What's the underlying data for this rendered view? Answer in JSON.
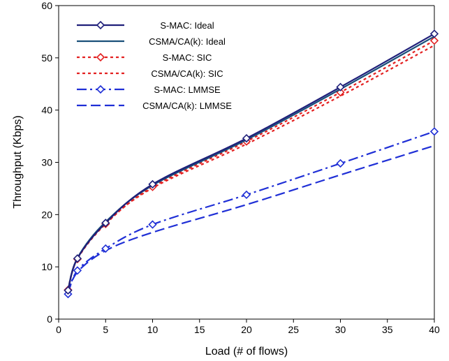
{
  "chart_data": {
    "type": "line",
    "title": "",
    "xlabel": "Load (# of flows)",
    "ylabel": "Throughput (Kbps)",
    "xlim": [
      0,
      40
    ],
    "ylim": [
      0,
      60
    ],
    "xticks": [
      0,
      5,
      10,
      15,
      20,
      25,
      30,
      35,
      40
    ],
    "yticks": [
      0,
      10,
      20,
      30,
      40,
      50,
      60
    ],
    "grid": false,
    "legend_position": "top-left",
    "series": [
      {
        "name": "S-MAC: Ideal",
        "color": "#1f1f7a",
        "style": "solid",
        "marker": "diamond",
        "x": [
          1,
          2,
          5,
          10,
          20,
          30,
          40
        ],
        "y": [
          5.5,
          11.6,
          18.4,
          25.8,
          34.6,
          44.4,
          54.6
        ]
      },
      {
        "name": "CSMA/CA(k): Ideal",
        "color": "#1a4f7a",
        "style": "solid",
        "marker": "none",
        "x": [
          1,
          2,
          5,
          10,
          20,
          30,
          40
        ],
        "y": [
          5.7,
          11.7,
          18.6,
          25.6,
          34.3,
          44.0,
          54.1
        ]
      },
      {
        "name": "S-MAC: SIC",
        "color": "#e32020",
        "style": "dotted",
        "marker": "diamond",
        "x": [
          1,
          2,
          5,
          10,
          20,
          30,
          40
        ],
        "y": [
          5.6,
          11.5,
          18.2,
          25.3,
          34.0,
          43.4,
          53.3
        ]
      },
      {
        "name": "CSMA/CA(k): SIC",
        "color": "#e32020",
        "style": "dotted",
        "marker": "none",
        "x": [
          1,
          2,
          5,
          10,
          20,
          30,
          40
        ],
        "y": [
          5.8,
          11.6,
          18.3,
          25.1,
          33.5,
          42.7,
          52.4
        ]
      },
      {
        "name": "S-MAC: LMMSE",
        "color": "#1f2fd6",
        "style": "dashdot",
        "marker": "diamond",
        "x": [
          1,
          2,
          5,
          10,
          20,
          30,
          40
        ],
        "y": [
          4.8,
          9.3,
          13.5,
          18.1,
          23.8,
          29.8,
          35.9
        ]
      },
      {
        "name": "CSMA/CA(k): LMMSE",
        "color": "#1f2fd6",
        "style": "dashed",
        "marker": "none",
        "x": [
          1,
          2,
          5,
          10,
          20,
          30,
          40
        ],
        "y": [
          5.0,
          9.0,
          13.1,
          16.6,
          21.9,
          27.6,
          33.2
        ]
      }
    ]
  }
}
